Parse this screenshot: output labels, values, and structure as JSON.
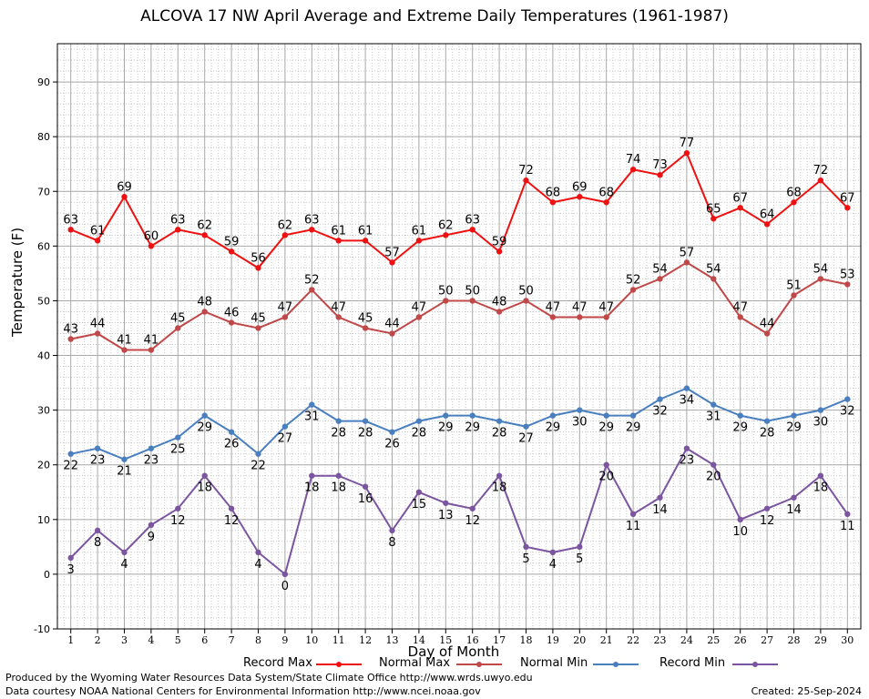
{
  "chart_data": {
    "type": "line",
    "title": "ALCOVA 17 NW April Average and Extreme Daily Temperatures (1961-1987)",
    "xlabel": "Day of Month",
    "ylabel": "Temperature (F)",
    "xlim": [
      0.5,
      30.5
    ],
    "ylim": [
      -10,
      97
    ],
    "x_ticks": [
      1,
      2,
      3,
      4,
      5,
      6,
      7,
      8,
      9,
      10,
      11,
      12,
      13,
      14,
      15,
      16,
      17,
      18,
      19,
      20,
      21,
      22,
      23,
      24,
      25,
      26,
      27,
      28,
      29,
      30
    ],
    "y_ticks": [
      -10,
      0,
      10,
      20,
      30,
      40,
      50,
      60,
      70,
      80,
      90
    ],
    "grid": true,
    "legend_position": "bottom",
    "x": [
      1,
      2,
      3,
      4,
      5,
      6,
      7,
      8,
      9,
      10,
      11,
      12,
      13,
      14,
      15,
      16,
      17,
      18,
      19,
      20,
      21,
      22,
      23,
      24,
      25,
      26,
      27,
      28,
      29,
      30
    ],
    "series": [
      {
        "name": "Record Max",
        "color": "#ee1111",
        "label_position": "above",
        "values": [
          63,
          61,
          69,
          60,
          63,
          62,
          59,
          56,
          62,
          63,
          61,
          61,
          57,
          61,
          62,
          63,
          59,
          72,
          68,
          69,
          68,
          74,
          73,
          77,
          65,
          67,
          64,
          68,
          72,
          67
        ]
      },
      {
        "name": "Normal Max",
        "color": "#c04848",
        "label_position": "above",
        "values": [
          43,
          44,
          41,
          41,
          45,
          48,
          46,
          45,
          47,
          52,
          47,
          45,
          44,
          47,
          50,
          50,
          48,
          50,
          47,
          47,
          47,
          52,
          54,
          57,
          54,
          47,
          44,
          51,
          54,
          53
        ]
      },
      {
        "name": "Normal Min",
        "color": "#4a7fbf",
        "label_position": "below",
        "values": [
          22,
          23,
          21,
          23,
          25,
          29,
          26,
          22,
          27,
          31,
          28,
          28,
          26,
          28,
          29,
          29,
          28,
          27,
          29,
          30,
          29,
          29,
          32,
          34,
          31,
          29,
          28,
          29,
          30,
          32
        ]
      },
      {
        "name": "Record Min",
        "color": "#7b55a0",
        "label_position": "below",
        "values": [
          3,
          8,
          4,
          9,
          12,
          18,
          12,
          4,
          0,
          18,
          18,
          16,
          8,
          15,
          13,
          12,
          18,
          5,
          4,
          5,
          20,
          11,
          14,
          23,
          20,
          10,
          12,
          14,
          18,
          11
        ]
      }
    ]
  },
  "footer": {
    "produced_by": "Produced by the Wyoming Water Resources Data System/State Climate Office http://www.wrds.uwyo.edu",
    "courtesy": "Data courtesy NOAA National Centers for Environmental Information http://www.ncei.noaa.gov",
    "created": "Created:  25-Sep-2024"
  }
}
